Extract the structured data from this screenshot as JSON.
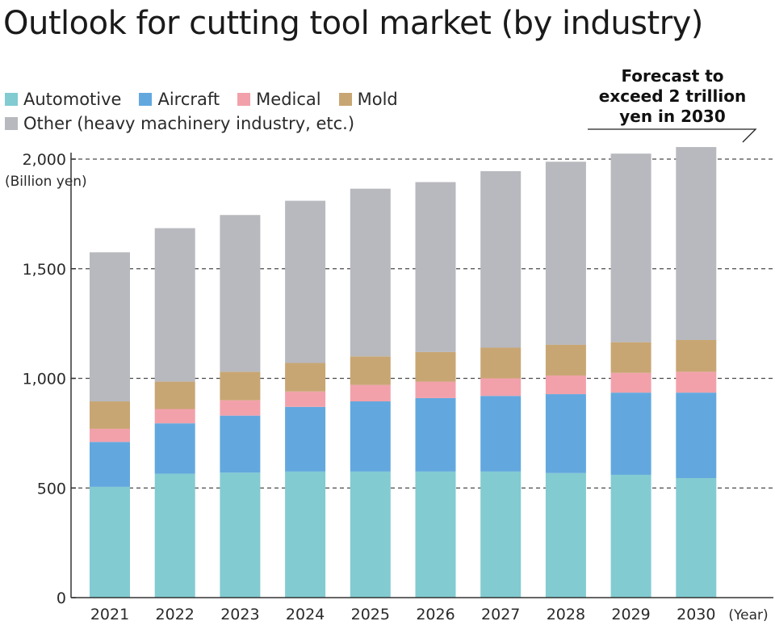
{
  "title": "Outlook for cutting tool market (by industry)",
  "annotation": {
    "lines": [
      "Forecast to",
      "exceed 2 trillion",
      "yen in 2030"
    ]
  },
  "colors": {
    "Automotive": "#82cbd1",
    "Aircraft": "#62a8de",
    "Medical": "#f2a1ab",
    "Mold": "#c8a673",
    "Other": "#b8b9be"
  },
  "chart_data": {
    "type": "bar",
    "stacked": true,
    "title": "Outlook for cutting tool market (by industry)",
    "ylabel": "(Billion yen)",
    "xlabel": "(Year)",
    "ylim": [
      0,
      2000
    ],
    "yticks": [
      "0",
      "500",
      "1,000",
      "1,500",
      "2,000"
    ],
    "grid": "dashed horizontal",
    "legend_position": "top-left",
    "categories": [
      "2021",
      "2022",
      "2023",
      "2024",
      "2025",
      "2026",
      "2027",
      "2028",
      "2029",
      "2030"
    ],
    "series": [
      {
        "name": "Automotive",
        "values": [
          505,
          565,
          570,
          575,
          575,
          575,
          575,
          568,
          560,
          545
        ]
      },
      {
        "name": "Aircraft",
        "values": [
          205,
          230,
          260,
          295,
          320,
          335,
          345,
          360,
          375,
          390
        ]
      },
      {
        "name": "Medical",
        "values": [
          60,
          65,
          70,
          70,
          75,
          75,
          80,
          85,
          90,
          95
        ]
      },
      {
        "name": "Mold",
        "values": [
          125,
          125,
          130,
          130,
          130,
          135,
          140,
          140,
          140,
          145
        ]
      },
      {
        "name": "Other (heavy machinery industry, etc.)",
        "values": [
          680,
          700,
          715,
          740,
          765,
          775,
          805,
          835,
          860,
          880
        ]
      }
    ]
  }
}
